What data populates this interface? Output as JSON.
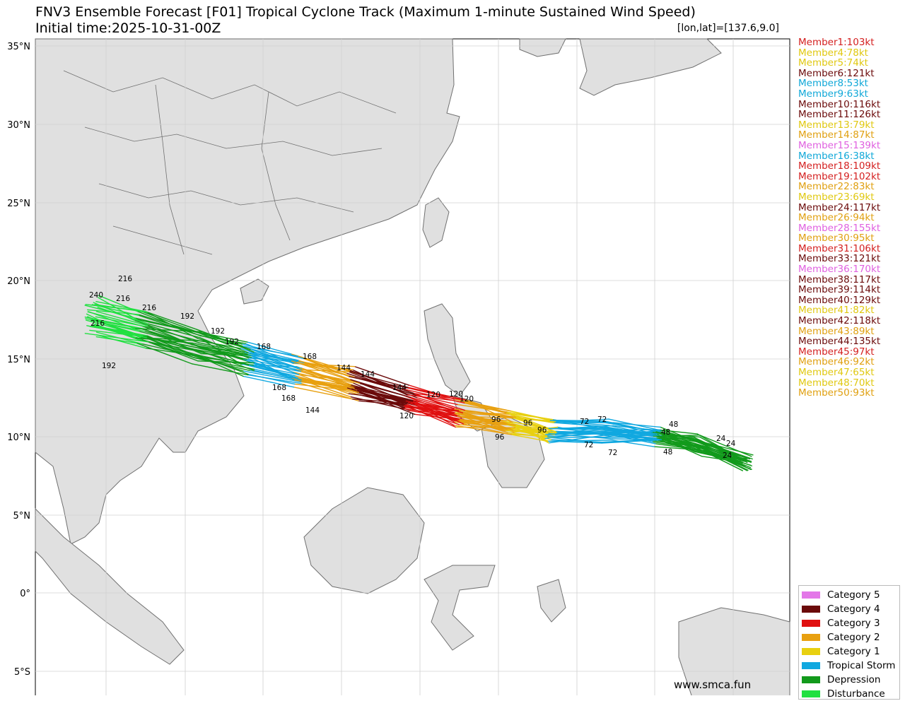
{
  "title": "FNV3 Ensemble Forecast [F01] Tropical Cyclone Track (Maximum 1-minute Sustained Wind Speed)",
  "subtitle": "Initial time:2025-10-31-00Z",
  "coordinate_readout": "[lon,lat]=[137.6,9.0]",
  "watermark": "www.smca.fun",
  "lat_labels": [
    "35°N",
    "30°N",
    "25°N",
    "20°N",
    "15°N",
    "10°N",
    "5°N",
    "0°",
    "5°S"
  ],
  "colors": {
    "cat5": "#e377e8",
    "cat4": "#6b0a0a",
    "cat3": "#e01010",
    "cat2": "#e8a010",
    "cat1": "#e8d010",
    "ts": "#10a8e0",
    "dep": "#129a1c",
    "dist": "#20e040",
    "land": "#e0e0e0",
    "border": "#707070"
  },
  "members": [
    {
      "label": "Member1:103kt",
      "color": "#d42020"
    },
    {
      "label": "Member4:78kt",
      "color": "#e0c810"
    },
    {
      "label": "Member5:74kt",
      "color": "#e0c810"
    },
    {
      "label": "Member6:121kt",
      "color": "#6b0a0a"
    },
    {
      "label": "Member8:53kt",
      "color": "#10a8d8"
    },
    {
      "label": "Member9:63kt",
      "color": "#10a8d8"
    },
    {
      "label": "Member10:116kt",
      "color": "#6b0a0a"
    },
    {
      "label": "Member11:126kt",
      "color": "#6b0a0a"
    },
    {
      "label": "Member13:79kt",
      "color": "#e0c810"
    },
    {
      "label": "Member14:87kt",
      "color": "#e0a010"
    },
    {
      "label": "Member15:139kt",
      "color": "#e060e0"
    },
    {
      "label": "Member16:38kt",
      "color": "#10a8d8"
    },
    {
      "label": "Member18:109kt",
      "color": "#d42020"
    },
    {
      "label": "Member19:102kt",
      "color": "#d42020"
    },
    {
      "label": "Member22:83kt",
      "color": "#e0a010"
    },
    {
      "label": "Member23:69kt",
      "color": "#e0c810"
    },
    {
      "label": "Member24:117kt",
      "color": "#6b0a0a"
    },
    {
      "label": "Member26:94kt",
      "color": "#e0a010"
    },
    {
      "label": "Member28:155kt",
      "color": "#e060e0"
    },
    {
      "label": "Member30:95kt",
      "color": "#e0a010"
    },
    {
      "label": "Member31:106kt",
      "color": "#d42020"
    },
    {
      "label": "Member33:121kt",
      "color": "#6b0a0a"
    },
    {
      "label": "Member36:170kt",
      "color": "#e060e0"
    },
    {
      "label": "Member38:117kt",
      "color": "#6b0a0a"
    },
    {
      "label": "Member39:114kt",
      "color": "#6b0a0a"
    },
    {
      "label": "Member40:129kt",
      "color": "#6b0a0a"
    },
    {
      "label": "Member41:82kt",
      "color": "#e0c810"
    },
    {
      "label": "Member42:118kt",
      "color": "#6b0a0a"
    },
    {
      "label": "Member43:89kt",
      "color": "#e0a010"
    },
    {
      "label": "Member44:135kt",
      "color": "#6b0a0a"
    },
    {
      "label": "Member45:97kt",
      "color": "#d42020"
    },
    {
      "label": "Member46:92kt",
      "color": "#e0a010"
    },
    {
      "label": "Member47:65kt",
      "color": "#e0c810"
    },
    {
      "label": "Member48:70kt",
      "color": "#e0c810"
    },
    {
      "label": "Member50:93kt",
      "color": "#e0a010"
    }
  ],
  "legend": [
    {
      "label": "Category 5",
      "color": "#e377e8"
    },
    {
      "label": "Category 4",
      "color": "#6b0a0a"
    },
    {
      "label": "Category 3",
      "color": "#e01010"
    },
    {
      "label": "Category 2",
      "color": "#e8a010"
    },
    {
      "label": "Category 1",
      "color": "#e8d010"
    },
    {
      "label": "Tropical Storm",
      "color": "#10a8e0"
    },
    {
      "label": "Depression",
      "color": "#129a1c"
    },
    {
      "label": "Disturbance",
      "color": "#20e040"
    }
  ],
  "hour_labels": [
    {
      "text": "24"
    },
    {
      "text": "24"
    },
    {
      "text": "24"
    },
    {
      "text": "48"
    },
    {
      "text": "48"
    },
    {
      "text": "48"
    },
    {
      "text": "72"
    },
    {
      "text": "72"
    },
    {
      "text": "72"
    },
    {
      "text": "72"
    },
    {
      "text": "96"
    },
    {
      "text": "96"
    },
    {
      "text": "96"
    },
    {
      "text": "96"
    },
    {
      "text": "120"
    },
    {
      "text": "120"
    },
    {
      "text": "120"
    },
    {
      "text": "120"
    },
    {
      "text": "144"
    },
    {
      "text": "144"
    },
    {
      "text": "144"
    },
    {
      "text": "144"
    },
    {
      "text": "168"
    },
    {
      "text": "168"
    },
    {
      "text": "168"
    },
    {
      "text": "168"
    },
    {
      "text": "192"
    },
    {
      "text": "192"
    },
    {
      "text": "192"
    },
    {
      "text": "192"
    },
    {
      "text": "216"
    },
    {
      "text": "216"
    },
    {
      "text": "216"
    },
    {
      "text": "216"
    },
    {
      "text": "240"
    }
  ]
}
